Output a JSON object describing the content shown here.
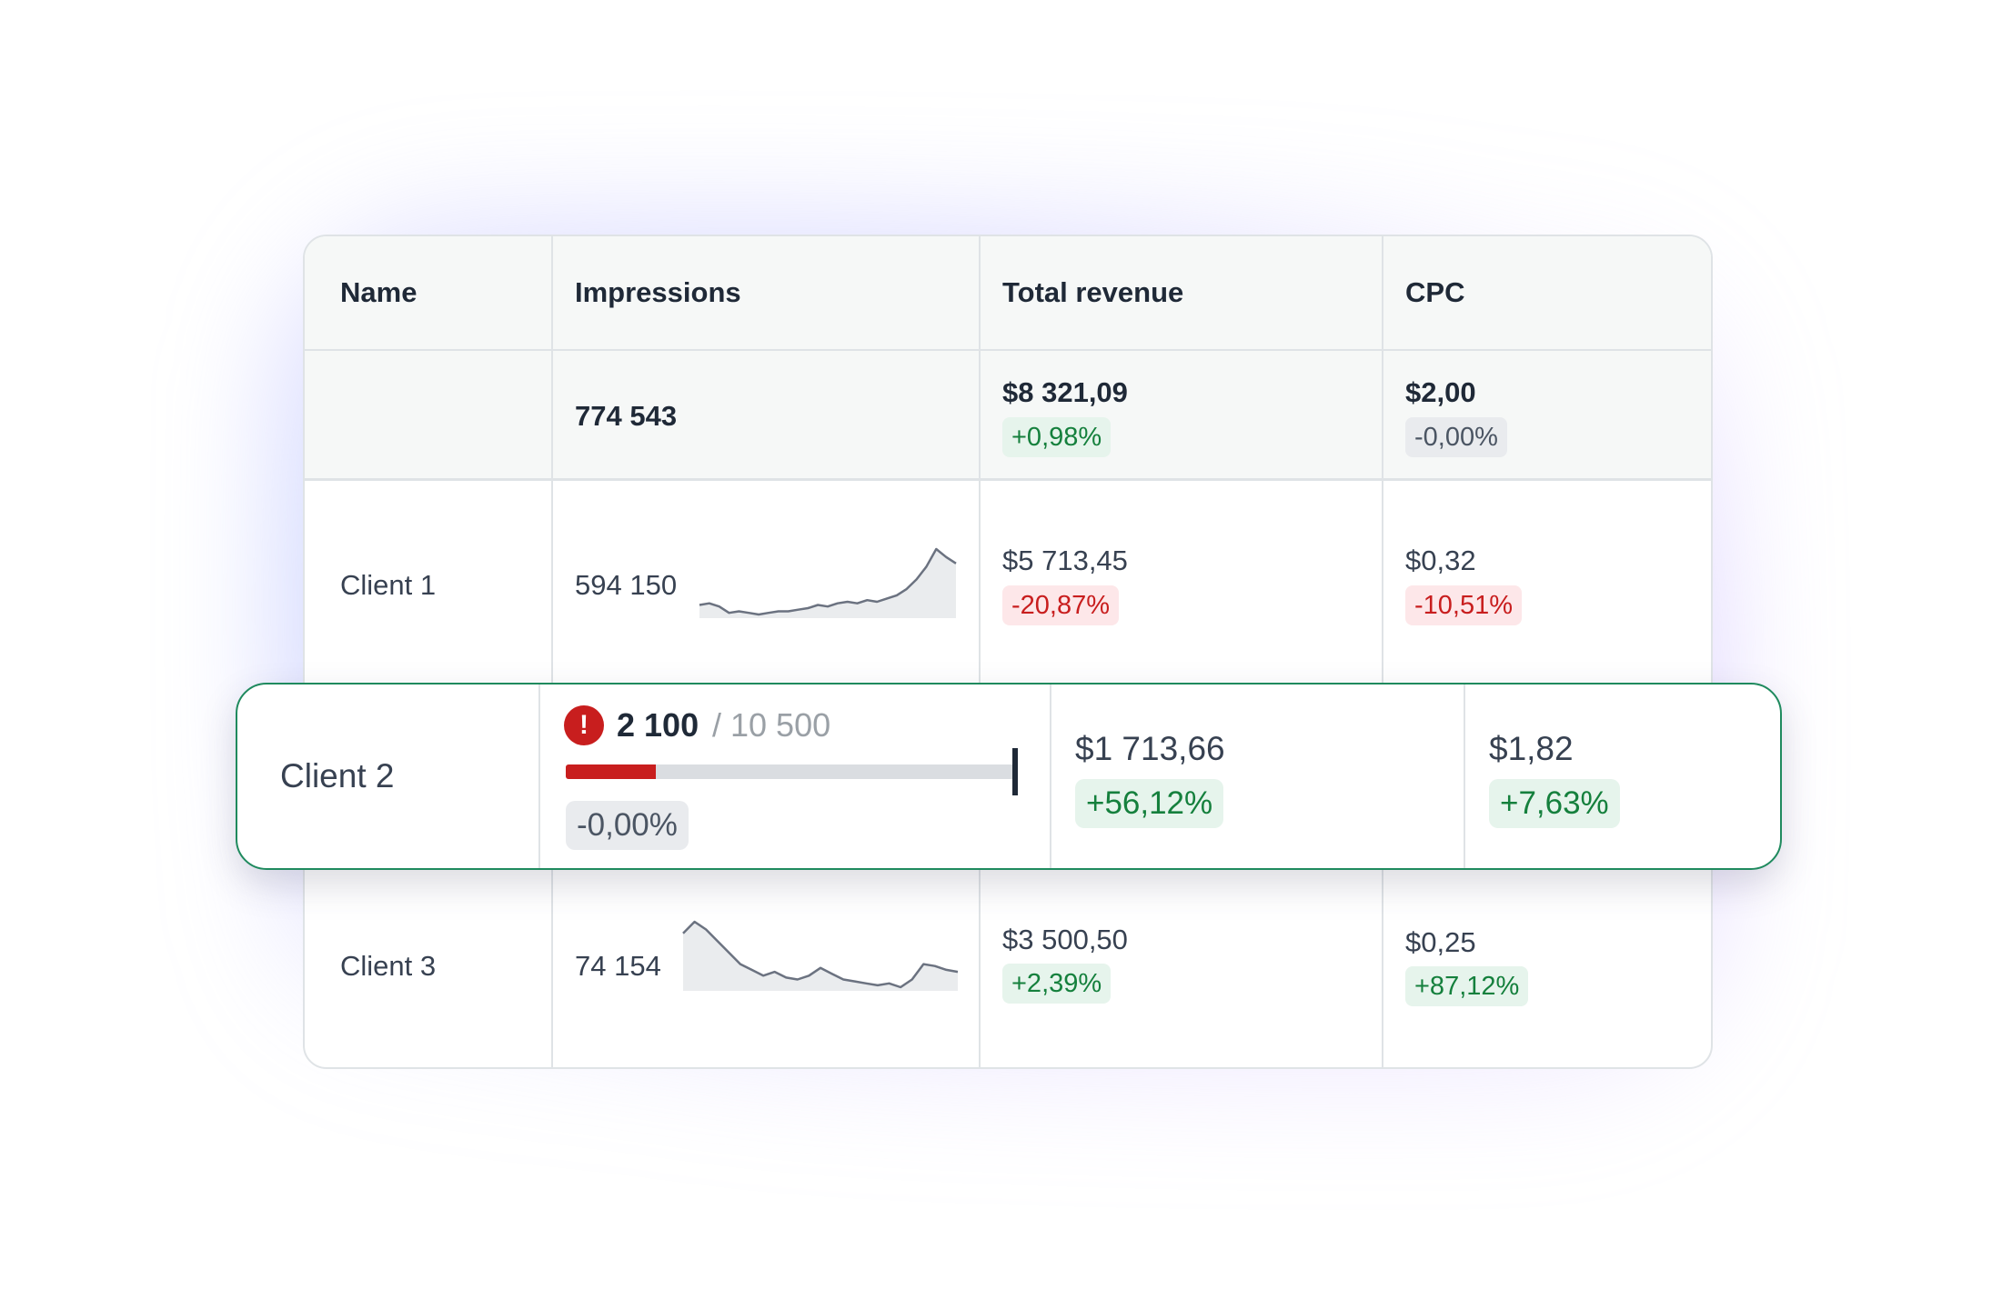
{
  "table": {
    "headers": [
      "Name",
      "Impressions",
      "Total revenue",
      "CPC"
    ],
    "summary": {
      "impressions": "774 543",
      "revenue": "$8 321,09",
      "revenue_change": "+0,98%",
      "cpc": "$2,00",
      "cpc_change": "-0,00%"
    },
    "rows": [
      {
        "name": "Client 1",
        "impressions": "594 150",
        "revenue": "$5 713,45",
        "revenue_change": "-20,87%",
        "cpc": "$0,32",
        "cpc_change": "-10,51%",
        "trend": [
          20,
          21,
          19,
          15,
          16,
          15,
          14,
          15,
          16,
          16,
          17,
          18,
          20,
          19,
          21,
          22,
          21,
          23,
          22,
          24,
          26,
          30,
          36,
          44,
          55,
          50,
          46
        ]
      },
      {
        "name": "Client 2",
        "impressions_current": "2 100",
        "impressions_target": "/ 10 500",
        "progress": 0.2,
        "impressions_change": "-0,00%",
        "revenue": "$1 713,66",
        "revenue_change": "+56,12%",
        "cpc": "$1,82",
        "cpc_change": "+7,63%"
      },
      {
        "name": "Client 3",
        "impressions": "74 154",
        "revenue": "$3 500,50",
        "revenue_change": "+2,39%",
        "cpc": "$0,25",
        "cpc_change": "+87,12%",
        "trend": [
          60,
          66,
          62,
          56,
          50,
          44,
          41,
          38,
          40,
          37,
          36,
          38,
          42,
          39,
          36,
          35,
          34,
          33,
          34,
          32,
          36,
          44,
          43,
          41,
          40
        ]
      }
    ]
  },
  "colors": {
    "accent_green": "#1f8a5e",
    "negative": "#c81e1e",
    "positive": "#15803d"
  },
  "icons": {
    "alert": "exclamation-circle-icon",
    "alert_glyph": "!"
  }
}
